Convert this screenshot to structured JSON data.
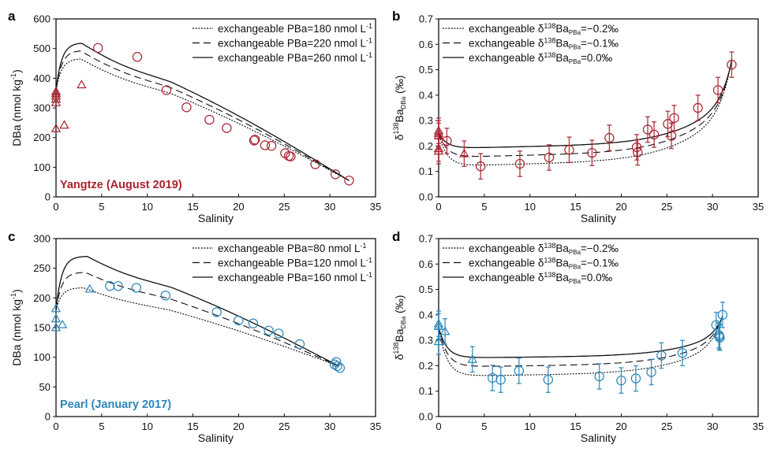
{
  "chart_data": [
    {
      "panel": "a",
      "type": "scatter",
      "river_label": "Yangtze (August 2019)",
      "river_color": "#a8232f",
      "xlabel": "Salinity",
      "ylabel": "DBa (nmol kg⁻¹)",
      "ylabel_main": "DBa (nmol kg",
      "ylabel_sup": "-1",
      "ylabel_tail": ")",
      "xlim": [
        0,
        35
      ],
      "ylim": [
        0,
        600
      ],
      "xticks": [
        0,
        5,
        10,
        15,
        20,
        25,
        30,
        35
      ],
      "yticks": [
        0,
        100,
        200,
        300,
        400,
        500,
        600
      ],
      "ytick_labels": [
        "0",
        "100",
        "200",
        "300",
        "400",
        "500",
        "600"
      ],
      "legend_position": "top-right",
      "legend": [
        {
          "style": "dotted",
          "text": "exchangeable PBa=180 nmol L",
          "sup": "-1"
        },
        {
          "style": "dashed",
          "text": "exchangeable PBa=220 nmol L",
          "sup": "-1"
        },
        {
          "style": "solid",
          "text": "exchangeable PBa=260 nmol L",
          "sup": "-1"
        }
      ],
      "curves": [
        {
          "name": "PBa=180",
          "style": "dotted",
          "start": 360,
          "peak_x": 2.7,
          "peak_y": 465,
          "end_x": 32.1,
          "end_y": 55
        },
        {
          "name": "PBa=220",
          "style": "dashed",
          "start": 360,
          "peak_x": 2.7,
          "peak_y": 492,
          "end_x": 32.1,
          "end_y": 55
        },
        {
          "name": "PBa=260",
          "style": "solid",
          "start": 360,
          "peak_x": 2.8,
          "peak_y": 518,
          "end_x": 32.1,
          "end_y": 55
        }
      ],
      "triangles": [
        {
          "x": 0,
          "y": 355
        },
        {
          "x": 0,
          "y": 348
        },
        {
          "x": 0,
          "y": 340
        },
        {
          "x": 0,
          "y": 330
        },
        {
          "x": 0,
          "y": 318
        },
        {
          "x": 0,
          "y": 230
        },
        {
          "x": 0.9,
          "y": 242
        },
        {
          "x": 2.8,
          "y": 378
        }
      ],
      "circles": [
        {
          "x": 4.6,
          "y": 502
        },
        {
          "x": 8.9,
          "y": 472
        },
        {
          "x": 12.1,
          "y": 360
        },
        {
          "x": 14.3,
          "y": 302
        },
        {
          "x": 16.8,
          "y": 260
        },
        {
          "x": 18.7,
          "y": 232
        },
        {
          "x": 21.7,
          "y": 190
        },
        {
          "x": 21.8,
          "y": 193
        },
        {
          "x": 22.9,
          "y": 174
        },
        {
          "x": 23.6,
          "y": 172
        },
        {
          "x": 25.1,
          "y": 147
        },
        {
          "x": 25.5,
          "y": 138
        },
        {
          "x": 25.7,
          "y": 136
        },
        {
          "x": 28.4,
          "y": 110
        },
        {
          "x": 30.6,
          "y": 76
        },
        {
          "x": 32.1,
          "y": 55
        }
      ]
    },
    {
      "panel": "b",
      "type": "scatter",
      "river_color": "#a8232f",
      "xlabel": "Salinity",
      "ylabel_delta": "δ",
      "ylabel_sup": "138",
      "ylabel_main": "Ba",
      "ylabel_sub": "DBa",
      "ylabel_tail": " (‰)",
      "xlim": [
        0,
        35
      ],
      "ylim": [
        0,
        0.7
      ],
      "xticks": [
        0,
        5,
        10,
        15,
        20,
        25,
        30,
        35
      ],
      "yticks": [
        0,
        0.1,
        0.2,
        0.3,
        0.4,
        0.5,
        0.6,
        0.7
      ],
      "ytick_labels": [
        "0.0",
        "0.1",
        "0.2",
        "0.3",
        "0.4",
        "0.5",
        "0.6",
        "0.7"
      ],
      "legend_position": "top-left",
      "legend": [
        {
          "style": "dotted",
          "pre": "exchangeable δ",
          "sup": "138",
          "mid": "Ba",
          "sub": "PBa",
          "post": "=−0.2‰"
        },
        {
          "style": "dashed",
          "pre": "exchangeable δ",
          "sup": "138",
          "mid": "Ba",
          "sub": "PBa",
          "post": "=−0.1‰"
        },
        {
          "style": "solid",
          "pre": "exchangeable δ",
          "sup": "138",
          "mid": "Ba",
          "sub": "PBa",
          "post": "=0.0‰"
        }
      ],
      "curves": [
        {
          "name": "-0.2",
          "style": "dotted",
          "start": 0.25,
          "min": 0.12,
          "end_x": 32.1,
          "end_y": 0.51
        },
        {
          "name": "-0.1",
          "style": "dashed",
          "start": 0.25,
          "min": 0.155,
          "end_x": 32.1,
          "end_y": 0.51
        },
        {
          "name": "0.0",
          "style": "solid",
          "start": 0.25,
          "min": 0.19,
          "end_x": 32.1,
          "end_y": 0.51
        }
      ],
      "triangles": [
        {
          "x": 0,
          "y": 0.26,
          "err": 0.05
        },
        {
          "x": 0,
          "y": 0.25,
          "err": 0.05
        },
        {
          "x": 0,
          "y": 0.24,
          "err": 0.05
        },
        {
          "x": 0,
          "y": 0.19,
          "err": 0.05
        },
        {
          "x": 0,
          "y": 0.18,
          "err": 0.05
        },
        {
          "x": 2.8,
          "y": 0.17,
          "err": 0.05
        }
      ],
      "circles": [
        {
          "x": 0.9,
          "y": 0.22,
          "err": 0.05
        },
        {
          "x": 4.6,
          "y": 0.12,
          "err": 0.05
        },
        {
          "x": 8.9,
          "y": 0.13,
          "err": 0.05
        },
        {
          "x": 12.1,
          "y": 0.155,
          "err": 0.05
        },
        {
          "x": 14.3,
          "y": 0.185,
          "err": 0.05
        },
        {
          "x": 16.8,
          "y": 0.173,
          "err": 0.05
        },
        {
          "x": 18.7,
          "y": 0.232,
          "err": 0.05
        },
        {
          "x": 21.7,
          "y": 0.195,
          "err": 0.05
        },
        {
          "x": 21.8,
          "y": 0.175,
          "err": 0.05
        },
        {
          "x": 22.9,
          "y": 0.265,
          "err": 0.05
        },
        {
          "x": 23.6,
          "y": 0.245,
          "err": 0.05
        },
        {
          "x": 25.1,
          "y": 0.287,
          "err": 0.05
        },
        {
          "x": 25.5,
          "y": 0.24,
          "err": 0.05
        },
        {
          "x": 25.8,
          "y": 0.31,
          "err": 0.05
        },
        {
          "x": 28.4,
          "y": 0.35,
          "err": 0.05
        },
        {
          "x": 30.6,
          "y": 0.42,
          "err": 0.05
        },
        {
          "x": 32.1,
          "y": 0.52,
          "err": 0.05
        }
      ]
    },
    {
      "panel": "c",
      "type": "scatter",
      "river_label": "Pearl (January 2017)",
      "river_color": "#2b86b8",
      "xlabel": "Salinity",
      "ylabel_main": "DBa (nmol kg",
      "ylabel_sup": "-1",
      "ylabel_tail": ")",
      "xlim": [
        0,
        35
      ],
      "ylim": [
        0,
        300
      ],
      "xticks": [
        0,
        5,
        10,
        15,
        20,
        25,
        30,
        35
      ],
      "yticks": [
        0,
        50,
        100,
        150,
        200,
        250,
        300
      ],
      "ytick_labels": [
        "0",
        "50",
        "100",
        "150",
        "200",
        "250",
        "300"
      ],
      "legend_position": "top-right",
      "legend": [
        {
          "style": "dotted",
          "text": "exchangeable PBa=80 nmol L",
          "sup": "-1"
        },
        {
          "style": "dashed",
          "text": "exchangeable PBa=120 nmol L",
          "sup": "-1"
        },
        {
          "style": "solid",
          "text": "exchangeable PBa=160 nmol L",
          "sup": "-1"
        }
      ],
      "curves": [
        {
          "name": "PBa=80",
          "style": "dotted",
          "start": 180,
          "peak_x": 3.0,
          "peak_y": 217,
          "end_x": 31.0,
          "end_y": 85
        },
        {
          "name": "PBa=120",
          "style": "dashed",
          "start": 180,
          "peak_x": 3.2,
          "peak_y": 243,
          "end_x": 31.0,
          "end_y": 85
        },
        {
          "name": "PBa=160",
          "style": "solid",
          "start": 180,
          "peak_x": 3.4,
          "peak_y": 270,
          "end_x": 31.0,
          "end_y": 85
        }
      ],
      "triangles": [
        {
          "x": 0,
          "y": 182
        },
        {
          "x": 0,
          "y": 165
        },
        {
          "x": 0,
          "y": 150
        },
        {
          "x": 0.7,
          "y": 155
        },
        {
          "x": 3.7,
          "y": 215
        }
      ],
      "circles": [
        {
          "x": 5.9,
          "y": 220
        },
        {
          "x": 6.8,
          "y": 220
        },
        {
          "x": 8.8,
          "y": 217
        },
        {
          "x": 12.0,
          "y": 204
        },
        {
          "x": 17.6,
          "y": 176
        },
        {
          "x": 20.0,
          "y": 162
        },
        {
          "x": 21.6,
          "y": 157
        },
        {
          "x": 23.3,
          "y": 145
        },
        {
          "x": 24.4,
          "y": 140
        },
        {
          "x": 26.7,
          "y": 122
        },
        {
          "x": 30.5,
          "y": 88
        },
        {
          "x": 30.7,
          "y": 92
        },
        {
          "x": 30.8,
          "y": 85
        },
        {
          "x": 31.1,
          "y": 82
        }
      ]
    },
    {
      "panel": "d",
      "type": "scatter",
      "river_color": "#2b86b8",
      "xlabel": "Salinity",
      "ylabel_delta": "δ",
      "ylabel_sup": "138",
      "ylabel_main": "Ba",
      "ylabel_sub": "DBa",
      "ylabel_tail": " (‰)",
      "xlim": [
        0,
        35
      ],
      "ylim": [
        0,
        0.7
      ],
      "xticks": [
        0,
        5,
        10,
        15,
        20,
        25,
        30,
        35
      ],
      "yticks": [
        0,
        0.1,
        0.2,
        0.3,
        0.4,
        0.5,
        0.6,
        0.7
      ],
      "ytick_labels": [
        "0.0",
        "0.1",
        "0.2",
        "0.3",
        "0.4",
        "0.5",
        "0.6",
        "0.7"
      ],
      "legend_position": "top-left",
      "legend": [
        {
          "style": "dotted",
          "pre": "exchangeable δ",
          "sup": "138",
          "mid": "Ba",
          "sub": "PBa",
          "post": "=−0.2‰"
        },
        {
          "style": "dashed",
          "pre": "exchangeable δ",
          "sup": "138",
          "mid": "Ba",
          "sub": "PBa",
          "post": "=−0.1‰"
        },
        {
          "style": "solid",
          "pre": "exchangeable δ",
          "sup": "138",
          "mid": "Ba",
          "sub": "PBa",
          "post": "=0.0‰"
        }
      ],
      "curves": [
        {
          "name": "-0.2",
          "style": "dotted",
          "start": 0.35,
          "min": 0.158,
          "end_x": 31.1,
          "end_y": 0.38
        },
        {
          "name": "-0.1",
          "style": "dashed",
          "start": 0.35,
          "min": 0.195,
          "end_x": 31.1,
          "end_y": 0.38
        },
        {
          "name": "0.0",
          "style": "solid",
          "start": 0.35,
          "min": 0.23,
          "end_x": 31.1,
          "end_y": 0.38
        }
      ],
      "triangles": [
        {
          "x": 0,
          "y": 0.365,
          "err": 0.05
        },
        {
          "x": 0,
          "y": 0.355,
          "err": 0.05
        },
        {
          "x": 0,
          "y": 0.295,
          "err": 0.05
        },
        {
          "x": 0.7,
          "y": 0.335,
          "err": 0.05
        },
        {
          "x": 3.7,
          "y": 0.225,
          "err": 0.05
        }
      ],
      "circles": [
        {
          "x": 5.9,
          "y": 0.152,
          "err": 0.05
        },
        {
          "x": 6.8,
          "y": 0.145,
          "err": 0.05
        },
        {
          "x": 8.8,
          "y": 0.18,
          "err": 0.05
        },
        {
          "x": 12.0,
          "y": 0.145,
          "err": 0.05
        },
        {
          "x": 17.6,
          "y": 0.158,
          "err": 0.05
        },
        {
          "x": 20.0,
          "y": 0.142,
          "err": 0.05
        },
        {
          "x": 21.6,
          "y": 0.15,
          "err": 0.05
        },
        {
          "x": 23.3,
          "y": 0.175,
          "err": 0.05
        },
        {
          "x": 24.4,
          "y": 0.24,
          "err": 0.05
        },
        {
          "x": 26.7,
          "y": 0.25,
          "err": 0.05
        },
        {
          "x": 30.4,
          "y": 0.36,
          "err": 0.05
        },
        {
          "x": 30.7,
          "y": 0.32,
          "err": 0.05
        },
        {
          "x": 30.8,
          "y": 0.31,
          "err": 0.05
        },
        {
          "x": 30.75,
          "y": 0.315,
          "err": 0.05
        },
        {
          "x": 31.1,
          "y": 0.4,
          "err": 0.05
        }
      ]
    }
  ]
}
